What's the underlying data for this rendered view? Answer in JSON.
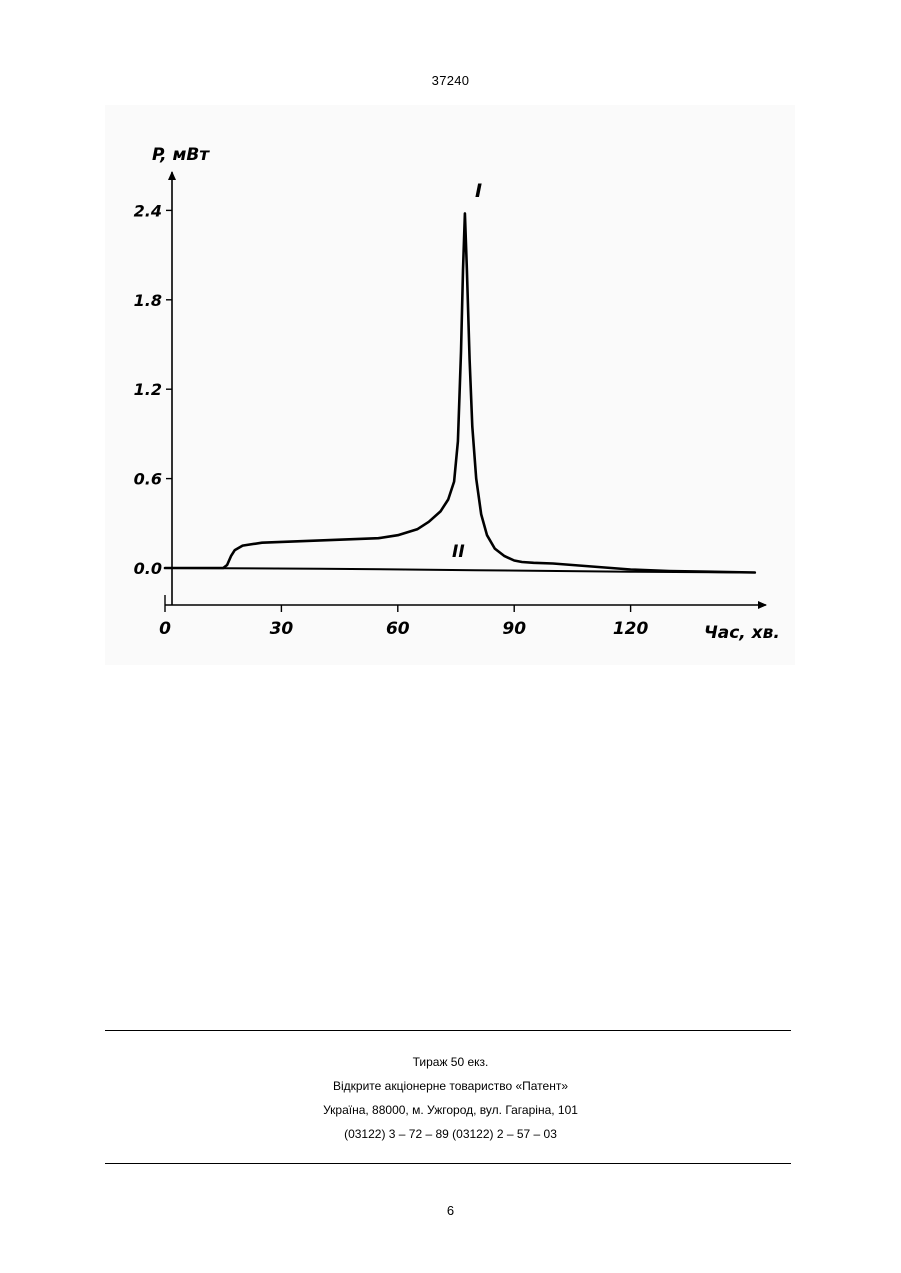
{
  "header": {
    "patent_number": "37240"
  },
  "chart_data": {
    "type": "line",
    "ylabel": "P, мВт",
    "xlabel": "Час, хв.",
    "x_ticks": [
      "0",
      "30",
      "60",
      "90",
      "120"
    ],
    "y_ticks": [
      "0.0",
      "0.6",
      "1.2",
      "1.8",
      "2.4"
    ],
    "xlim": [
      0,
      152
    ],
    "ylim": [
      -0.25,
      2.75
    ],
    "grid": false,
    "series": [
      {
        "name": "I",
        "x": [
          0,
          15,
          16,
          17,
          18,
          20,
          25,
          35,
          45,
          55,
          60,
          65,
          68,
          71,
          73,
          74.5,
          75.5,
          76.3,
          76.8,
          77.3,
          77.8,
          78.5,
          79.2,
          80.2,
          81.5,
          83,
          85,
          87.5,
          90,
          92,
          95,
          100,
          110,
          120,
          130,
          140,
          152
        ],
        "y": [
          0,
          0,
          0.02,
          0.08,
          0.12,
          0.15,
          0.17,
          0.18,
          0.19,
          0.2,
          0.22,
          0.26,
          0.31,
          0.38,
          0.46,
          0.58,
          0.85,
          1.45,
          2.0,
          2.38,
          2.0,
          1.4,
          0.95,
          0.6,
          0.36,
          0.22,
          0.13,
          0.08,
          0.05,
          0.04,
          0.035,
          0.03,
          0.01,
          -0.01,
          -0.02,
          -0.025,
          -0.03
        ]
      },
      {
        "name": "II",
        "x": [
          0,
          40,
          80,
          120,
          152
        ],
        "y": [
          0,
          -0.005,
          -0.015,
          -0.025,
          -0.03
        ]
      }
    ],
    "annotations": [
      "I",
      "II"
    ]
  },
  "imprint": {
    "line1": "Тираж 50 екз.",
    "line2": "Відкрите акціонерне товариство «Патент»",
    "line3": "Україна, 88000, м. Ужгород, вул. Гагаріна, 101",
    "line4": "(03122) 3 – 72 – 89   (03122) 2 – 57 – 03"
  },
  "footer": {
    "page_number": "6"
  }
}
